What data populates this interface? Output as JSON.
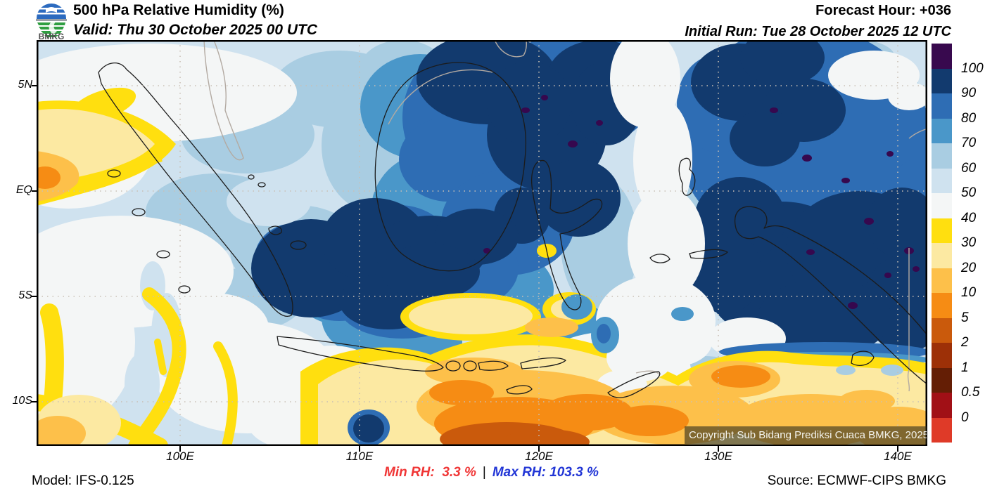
{
  "header": {
    "logo_text": "BMKG",
    "title": "500 hPa Relative Humidity (%)",
    "valid_line": "Valid: Thu 30 October 2025 00 UTC",
    "forecast_hour_line": "Forecast Hour: +036",
    "initial_run_line": "Initial Run: Tue 28 October 2025 12 UTC"
  },
  "map": {
    "lat_labels": [
      "5N",
      "EQ",
      "5S",
      "10S"
    ],
    "lon_labels": [
      "100E",
      "110E",
      "120E",
      "130E",
      "140E"
    ],
    "copyright_overlay": "Copyright Sub Bidang Prediksi Cuaca BMKG, 2025"
  },
  "colorbar": {
    "tick_labels": [
      "100",
      "90",
      "80",
      "70",
      "60",
      "50",
      "40",
      "30",
      "20",
      "10",
      "5",
      "2",
      "1",
      "0.5",
      "0"
    ],
    "colors_top_to_bottom": [
      "#38094e",
      "#123a6e",
      "#2e6db4",
      "#4a97c9",
      "#a9cde2",
      "#cfe2ef",
      "#f4f6f6",
      "#ffdf0f",
      "#fce9a2",
      "#fdc04a",
      "#f68c14",
      "#ca5a0c",
      "#9d3007",
      "#641e05",
      "#a11016",
      "#df3a28"
    ]
  },
  "footer": {
    "model": "Model: IFS-0.125",
    "min_rh": "Min RH:  3.3 %",
    "separator": "|",
    "max_rh": "Max RH: 103.3 %",
    "source": "Source: ECMWF-CIPS BMKG",
    "min_color": "#f03535",
    "max_color": "#2236d6"
  }
}
